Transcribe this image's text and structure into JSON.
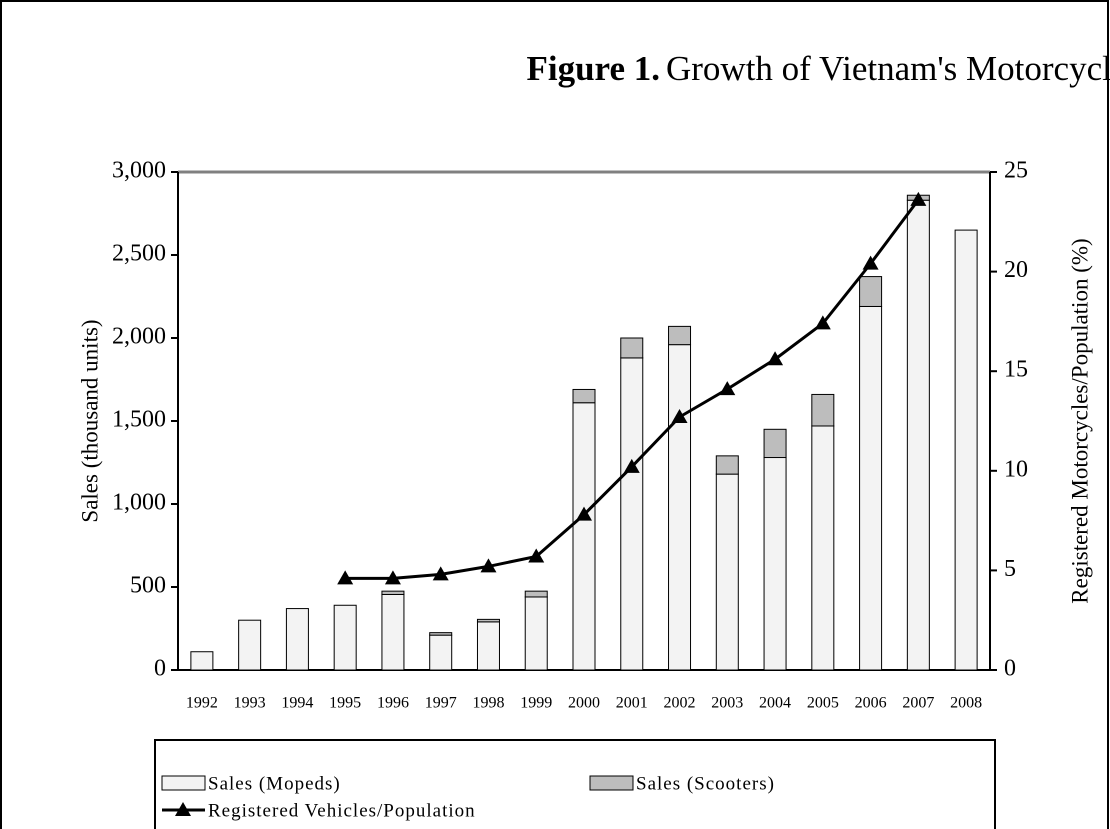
{
  "chart_data": {
    "type": "stacked-bar-line",
    "figure_label": "Figure 1.",
    "title": "Growth of Vietnam's Motorcycle Market",
    "y_label": "Sales (thousand units)",
    "y2_label": "Registered Motorcycles/Population  (%)",
    "categories": [
      "1992",
      "1993",
      "1994",
      "1995",
      "1996",
      "1997",
      "1998",
      "1999",
      "2000",
      "2001",
      "2002",
      "2003",
      "2004",
      "2005",
      "2006",
      "2007",
      "2008"
    ],
    "series": [
      {
        "name": "Sales (Mopeds)",
        "type": "bar",
        "color": "#f3f3f3",
        "values": [
          110,
          300,
          370,
          390,
          455,
          210,
          290,
          440,
          1610,
          1880,
          1960,
          1180,
          1280,
          1470,
          2190,
          2830,
          2650
        ]
      },
      {
        "name": "Sales (Scooters)",
        "type": "bar",
        "color": "#bdbdbd",
        "values": [
          0,
          0,
          0,
          0,
          20,
          15,
          15,
          35,
          80,
          120,
          110,
          110,
          170,
          190,
          180,
          30,
          0
        ]
      },
      {
        "name": "Registered Vehicles/Population",
        "type": "line",
        "axis": "y2",
        "color": "#000000",
        "values": [
          null,
          null,
          null,
          4.6,
          4.6,
          4.8,
          5.2,
          5.7,
          7.8,
          10.2,
          12.7,
          14.1,
          15.6,
          17.4,
          20.4,
          23.6,
          null
        ]
      }
    ],
    "ylim": [
      0,
      3000
    ],
    "yticks": [
      0,
      500,
      {
        "value": 1000,
        "label": "1,000"
      },
      {
        "value": 1500,
        "label": "1,500"
      },
      {
        "value": 2000,
        "label": "2,000"
      },
      {
        "value": 2500,
        "label": "2,500"
      },
      {
        "value": 3000,
        "label": "3,000"
      }
    ],
    "y2lim": [
      0,
      25
    ],
    "y2ticks": [
      0,
      5,
      10,
      15,
      20,
      25
    ],
    "legend": "bottom"
  }
}
